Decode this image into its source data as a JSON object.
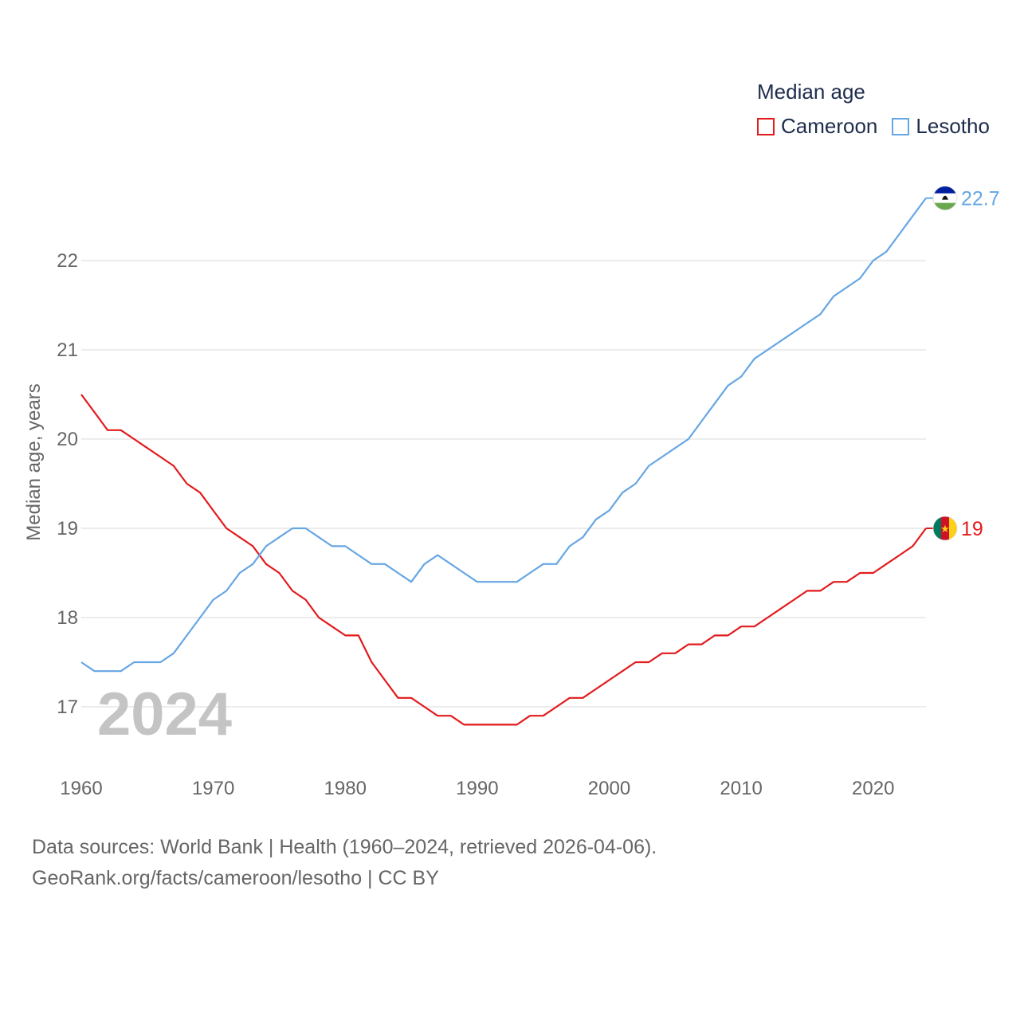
{
  "chart_data": {
    "type": "line",
    "title": "Median age",
    "ylabel": "Median age, years",
    "xlabel": "",
    "current_year_label": "2024",
    "xlim": [
      1960,
      2024
    ],
    "ylim": [
      16.5,
      23.0
    ],
    "x_ticks": [
      "1960",
      "1970",
      "1980",
      "1990",
      "2000",
      "2010",
      "2020"
    ],
    "y_ticks": [
      "17",
      "18",
      "19",
      "20",
      "21",
      "22"
    ],
    "x": [
      1960,
      1961,
      1962,
      1963,
      1964,
      1965,
      1966,
      1967,
      1968,
      1969,
      1970,
      1971,
      1972,
      1973,
      1974,
      1975,
      1976,
      1977,
      1978,
      1979,
      1980,
      1981,
      1982,
      1983,
      1984,
      1985,
      1986,
      1987,
      1988,
      1989,
      1990,
      1991,
      1992,
      1993,
      1994,
      1995,
      1996,
      1997,
      1998,
      1999,
      2000,
      2001,
      2002,
      2003,
      2004,
      2005,
      2006,
      2007,
      2008,
      2009,
      2010,
      2011,
      2012,
      2013,
      2014,
      2015,
      2016,
      2017,
      2018,
      2019,
      2020,
      2021,
      2022,
      2023,
      2024
    ],
    "series": [
      {
        "name": "Cameroon",
        "color": "#e31a1c",
        "end_label": "19",
        "flag_icon": "cameroon-flag-icon",
        "values": [
          20.5,
          20.3,
          20.1,
          20.1,
          20.0,
          19.9,
          19.8,
          19.7,
          19.5,
          19.4,
          19.2,
          19.0,
          18.9,
          18.8,
          18.6,
          18.5,
          18.3,
          18.2,
          18.0,
          17.9,
          17.8,
          17.8,
          17.5,
          17.3,
          17.1,
          17.1,
          17.0,
          16.9,
          16.9,
          16.8,
          16.8,
          16.8,
          16.8,
          16.8,
          16.9,
          16.9,
          17.0,
          17.1,
          17.1,
          17.2,
          17.3,
          17.4,
          17.5,
          17.5,
          17.6,
          17.6,
          17.7,
          17.7,
          17.8,
          17.8,
          17.9,
          17.9,
          18.0,
          18.1,
          18.2,
          18.3,
          18.3,
          18.4,
          18.4,
          18.5,
          18.5,
          18.6,
          18.7,
          18.8,
          19.0
        ]
      },
      {
        "name": "Lesotho",
        "color": "#66a6e3",
        "end_label": "22.7",
        "flag_icon": "lesotho-flag-icon",
        "values": [
          17.5,
          17.4,
          17.4,
          17.4,
          17.5,
          17.5,
          17.5,
          17.6,
          17.8,
          18.0,
          18.2,
          18.3,
          18.5,
          18.6,
          18.8,
          18.9,
          19.0,
          19.0,
          18.9,
          18.8,
          18.8,
          18.7,
          18.6,
          18.6,
          18.5,
          18.4,
          18.6,
          18.7,
          18.6,
          18.5,
          18.4,
          18.4,
          18.4,
          18.4,
          18.5,
          18.6,
          18.6,
          18.8,
          18.9,
          19.1,
          19.2,
          19.4,
          19.5,
          19.7,
          19.8,
          19.9,
          20.0,
          20.2,
          20.4,
          20.6,
          20.7,
          20.9,
          21.0,
          21.1,
          21.2,
          21.3,
          21.4,
          21.6,
          21.7,
          21.8,
          22.0,
          22.1,
          22.3,
          22.5,
          22.7
        ]
      }
    ]
  },
  "legend": {
    "title": "Median age",
    "items": [
      {
        "label": "Cameroon",
        "color": "#e31a1c"
      },
      {
        "label": "Lesotho",
        "color": "#66a6e3"
      }
    ]
  },
  "source": {
    "line1": "Data sources: World Bank | Health (1960–2024, retrieved 2026-04-06).",
    "line2": "GeoRank.org/facts/cameroon/lesotho | CC BY"
  }
}
